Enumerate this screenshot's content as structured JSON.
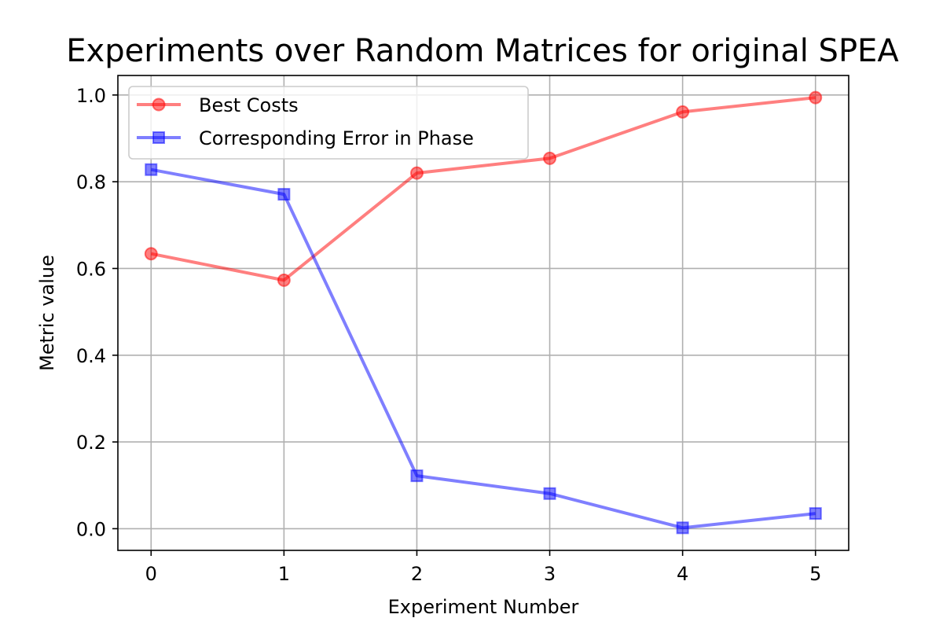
{
  "chart_data": {
    "type": "line",
    "title": "Experiments over Random Matrices for original SPEA",
    "xlabel": "Experiment Number",
    "ylabel": "Metric value",
    "x": [
      0,
      1,
      2,
      3,
      4,
      5
    ],
    "xlim": [
      -0.25,
      5.25
    ],
    "ylim": [
      -0.05,
      1.045
    ],
    "xticks": [
      "0",
      "1",
      "2",
      "3",
      "4",
      "5"
    ],
    "yticks": [
      "0.0",
      "0.2",
      "0.4",
      "0.6",
      "0.8",
      "1.0"
    ],
    "grid": true,
    "legend_position": "top-left",
    "series": [
      {
        "name": "Best Costs",
        "color": "#ff0000",
        "marker": "circle",
        "values": [
          0.634,
          0.573,
          0.82,
          0.854,
          0.961,
          0.994
        ]
      },
      {
        "name": "Corresponding Error in Phase",
        "color": "#0000ff",
        "marker": "square",
        "values": [
          0.828,
          0.771,
          0.122,
          0.081,
          0.002,
          0.035
        ]
      }
    ]
  }
}
